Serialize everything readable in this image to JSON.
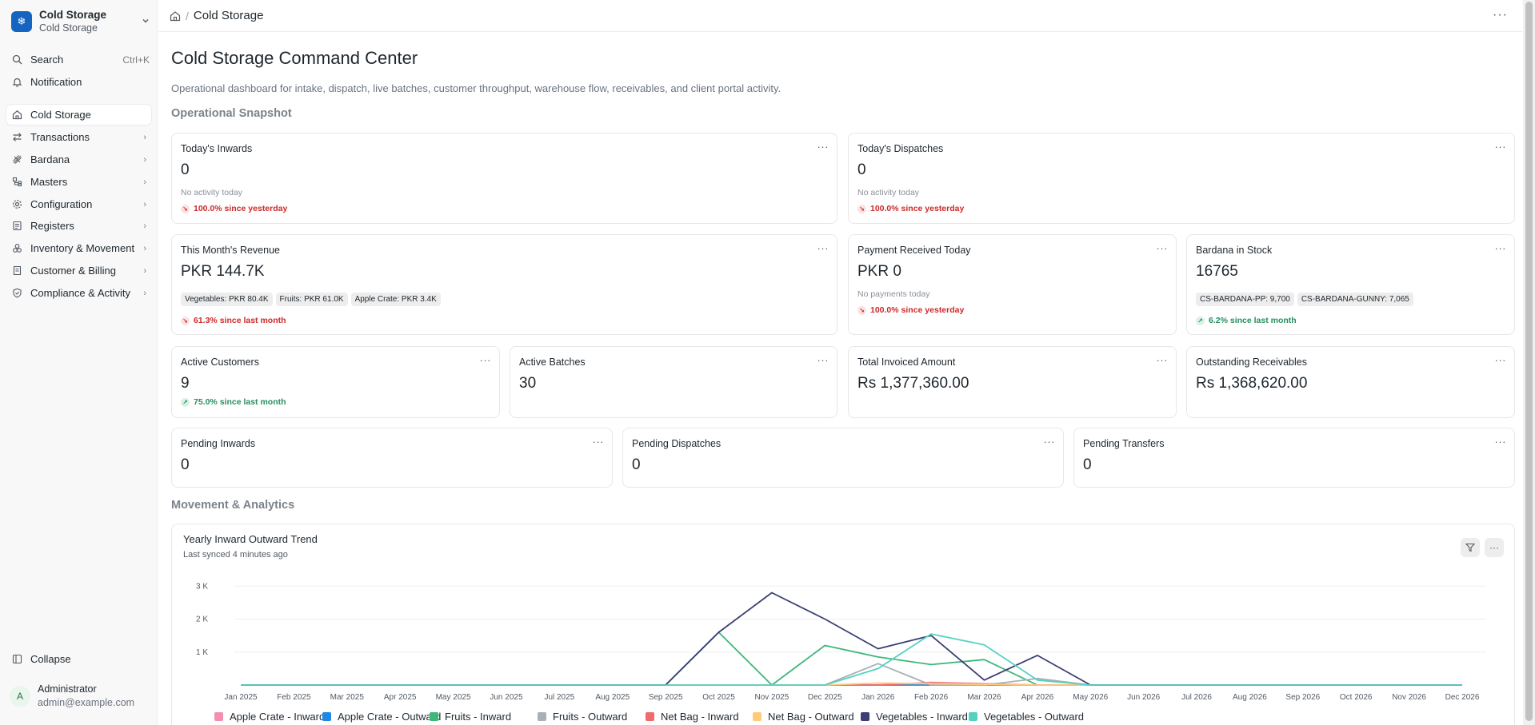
{
  "workspace": {
    "title": "Cold Storage",
    "subtitle": "Cold Storage",
    "logo_icon": "snowflake-icon",
    "accent": "#1565c0"
  },
  "sidebar": {
    "search": {
      "label": "Search",
      "shortcut": "Ctrl+K"
    },
    "notification": {
      "label": "Notification"
    },
    "items": [
      {
        "label": "Cold Storage",
        "icon": "home-icon",
        "active": true
      },
      {
        "label": "Transactions",
        "icon": "arrows-icon"
      },
      {
        "label": "Bardana",
        "icon": "bag-icon"
      },
      {
        "label": "Masters",
        "icon": "masters-icon"
      },
      {
        "label": "Configuration",
        "icon": "gear-icon"
      },
      {
        "label": "Registers",
        "icon": "register-icon"
      },
      {
        "label": "Inventory & Movement",
        "icon": "inventory-icon"
      },
      {
        "label": "Customer & Billing",
        "icon": "billing-icon"
      },
      {
        "label": "Compliance & Activity",
        "icon": "shield-icon"
      }
    ],
    "collapse_label": "Collapse",
    "user": {
      "initial": "A",
      "name": "Administrator",
      "email": "admin@example.com"
    }
  },
  "header": {
    "breadcrumb": "Cold Storage"
  },
  "page": {
    "title": "Cold Storage Command Center",
    "description": "Operational dashboard for intake, dispatch, live batches, customer throughput, warehouse flow, receivables, and client portal activity.",
    "snapshot_heading": "Operational Snapshot",
    "analytics_heading": "Movement & Analytics"
  },
  "cards": {
    "todays_inwards": {
      "title": "Today's Inwards",
      "value": "0",
      "note": "No activity today",
      "trend": "100.0% since yesterday"
    },
    "todays_dispatches": {
      "title": "Today's Dispatches",
      "value": "0",
      "note": "No activity today",
      "trend": "100.0% since yesterday"
    },
    "month_revenue": {
      "title": "This Month's Revenue",
      "value": "PKR 144.7K",
      "chips": [
        "Vegetables: PKR 80.4K",
        "Fruits: PKR 61.0K",
        "Apple Crate: PKR 3.4K"
      ],
      "trend": "61.3% since last month"
    },
    "payment_today": {
      "title": "Payment Received Today",
      "value": "PKR 0",
      "note": "No payments today",
      "trend": "100.0% since yesterday"
    },
    "bardana_stock": {
      "title": "Bardana in Stock",
      "value": "16765",
      "chips": [
        "CS-BARDANA-PP: 9,700",
        "CS-BARDANA-GUNNY: 7,065"
      ],
      "trend": "6.2% since last month"
    },
    "active_customers": {
      "title": "Active Customers",
      "value": "9",
      "trend": "75.0% since last month"
    },
    "active_batches": {
      "title": "Active Batches",
      "value": "30"
    },
    "total_invoiced": {
      "title": "Total Invoiced Amount",
      "value": "Rs 1,377,360.00"
    },
    "outstanding": {
      "title": "Outstanding Receivables",
      "value": "Rs 1,368,620.00"
    },
    "pending_inwards": {
      "title": "Pending Inwards",
      "value": "0"
    },
    "pending_dispatches": {
      "title": "Pending Dispatches",
      "value": "0"
    },
    "pending_transfers": {
      "title": "Pending Transfers",
      "value": "0"
    }
  },
  "colors": {
    "down": "#cc2929",
    "up": "#278f5e"
  },
  "chart": {
    "title": "Yearly Inward Outward Trend",
    "subtitle": "Last synced 4 minutes ago"
  },
  "chart_data": {
    "type": "line",
    "x": [
      "Jan 2025",
      "Feb 2025",
      "Mar 2025",
      "Apr 2025",
      "May 2025",
      "Jun 2025",
      "Jul 2025",
      "Aug 2025",
      "Sep 2025",
      "Oct 2025",
      "Nov 2025",
      "Dec 2025",
      "Jan 2026",
      "Feb 2026",
      "Mar 2026",
      "Apr 2026",
      "May 2026",
      "Jun 2026",
      "Jul 2026",
      "Aug 2026",
      "Sep 2026",
      "Oct 2026",
      "Nov 2026",
      "Dec 2026"
    ],
    "yticks": [
      {
        "v": 1000,
        "label": "1 K"
      },
      {
        "v": 2000,
        "label": "2 K"
      },
      {
        "v": 3000,
        "label": "3 K"
      }
    ],
    "ylim": [
      0,
      3200
    ],
    "grid": true,
    "legend_position": "bottom",
    "series": [
      {
        "name": "Apple Crate - Inward",
        "color": "#f48fb1",
        "values": [
          0,
          0,
          0,
          0,
          0,
          0,
          0,
          0,
          0,
          0,
          0,
          0,
          0,
          80,
          40,
          0,
          0,
          0,
          0,
          0,
          0,
          0,
          0,
          0
        ]
      },
      {
        "name": "Apple Crate - Outward",
        "color": "#1e88e5",
        "values": [
          0,
          0,
          0,
          0,
          0,
          0,
          0,
          0,
          0,
          0,
          0,
          0,
          0,
          0,
          0,
          0,
          0,
          0,
          0,
          0,
          0,
          0,
          0,
          0
        ]
      },
      {
        "name": "Fruits - Inward",
        "color": "#3db77a",
        "values": [
          0,
          0,
          0,
          0,
          0,
          0,
          0,
          0,
          0,
          1600,
          0,
          1200,
          850,
          620,
          770,
          0,
          0,
          0,
          0,
          0,
          0,
          0,
          0,
          0
        ]
      },
      {
        "name": "Fruits - Outward",
        "color": "#a8b0b8",
        "values": [
          0,
          0,
          0,
          0,
          0,
          0,
          0,
          0,
          0,
          0,
          0,
          0,
          650,
          0,
          0,
          200,
          0,
          0,
          0,
          0,
          0,
          0,
          0,
          0
        ]
      },
      {
        "name": "Net Bag - Inward",
        "color": "#f06b6b",
        "values": [
          0,
          0,
          0,
          0,
          0,
          0,
          0,
          0,
          0,
          0,
          0,
          0,
          0,
          70,
          30,
          0,
          0,
          0,
          0,
          0,
          0,
          0,
          0,
          0
        ]
      },
      {
        "name": "Net Bag - Outward",
        "color": "#ffcb7a",
        "values": [
          0,
          0,
          0,
          0,
          0,
          0,
          0,
          0,
          0,
          0,
          0,
          0,
          60,
          40,
          20,
          0,
          0,
          0,
          0,
          0,
          0,
          0,
          0,
          0
        ]
      },
      {
        "name": "Vegetables - Inward",
        "color": "#3b3f73",
        "values": [
          0,
          0,
          0,
          0,
          0,
          0,
          0,
          0,
          0,
          1600,
          2800,
          2000,
          1100,
          1500,
          150,
          900,
          0,
          0,
          0,
          0,
          0,
          0,
          0,
          0
        ]
      },
      {
        "name": "Vegetables - Outward",
        "color": "#55d1c2",
        "values": [
          0,
          0,
          0,
          0,
          0,
          0,
          0,
          0,
          0,
          0,
          0,
          0,
          500,
          1550,
          1220,
          150,
          0,
          0,
          0,
          0,
          0,
          0,
          0,
          0
        ]
      }
    ]
  }
}
